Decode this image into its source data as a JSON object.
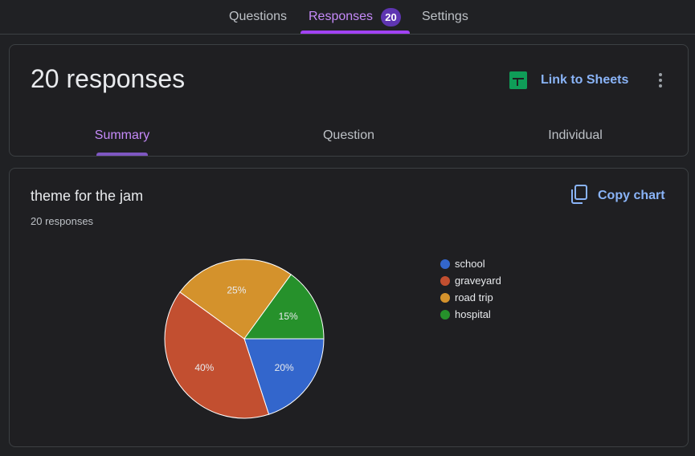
{
  "topnav": {
    "tabs": [
      {
        "label": "Questions"
      },
      {
        "label": "Responses",
        "badge": "20"
      },
      {
        "label": "Settings"
      }
    ],
    "active": "Responses"
  },
  "summary_card": {
    "title": "20 responses",
    "link_label": "Link to Sheets",
    "subtabs": [
      {
        "label": "Summary"
      },
      {
        "label": "Question"
      },
      {
        "label": "Individual"
      }
    ],
    "active_subtab": "Summary"
  },
  "question_card": {
    "title": "theme for the jam",
    "count": "20 responses",
    "copy_label": "Copy chart"
  },
  "colors": {
    "accent": "#c58af9",
    "link": "#8ab4f8",
    "sheets_green": "#0f9d58"
  },
  "icons": [
    "sheets-icon",
    "more-vert-icon",
    "copy-icon"
  ],
  "chart_data": {
    "type": "pie",
    "labels": [
      "school",
      "graveyard",
      "road trip",
      "hospital"
    ],
    "values": [
      20,
      40,
      25,
      15
    ],
    "slice_labels": [
      "20%",
      "40%",
      "25%",
      "15%"
    ],
    "colors": [
      "#3366cc",
      "#c24f30",
      "#d4922c",
      "#26912b"
    ],
    "legend_position": "right"
  }
}
